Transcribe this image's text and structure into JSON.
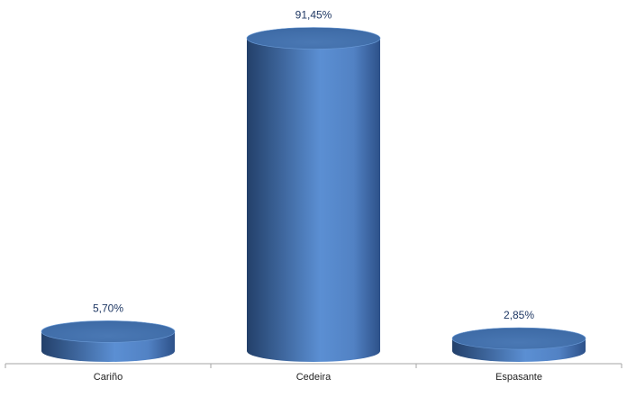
{
  "chart_data": {
    "type": "bar",
    "style": "3d-cylinder",
    "categories": [
      "Cariño",
      "Cedeira",
      "Espasante"
    ],
    "values": [
      5.7,
      91.45,
      2.85
    ],
    "data_labels": [
      "5,70%",
      "91,45%",
      "2,85%"
    ],
    "title": "",
    "xlabel": "",
    "ylabel": "",
    "ylim": [
      0,
      100
    ],
    "grid": false,
    "legend": "none",
    "colors": {
      "bar": "#4F81BD",
      "bar_dark": "#23406a",
      "bar_light": "#6a9ad6",
      "label": "#1f3864",
      "axis": "#a6a6a6"
    }
  }
}
